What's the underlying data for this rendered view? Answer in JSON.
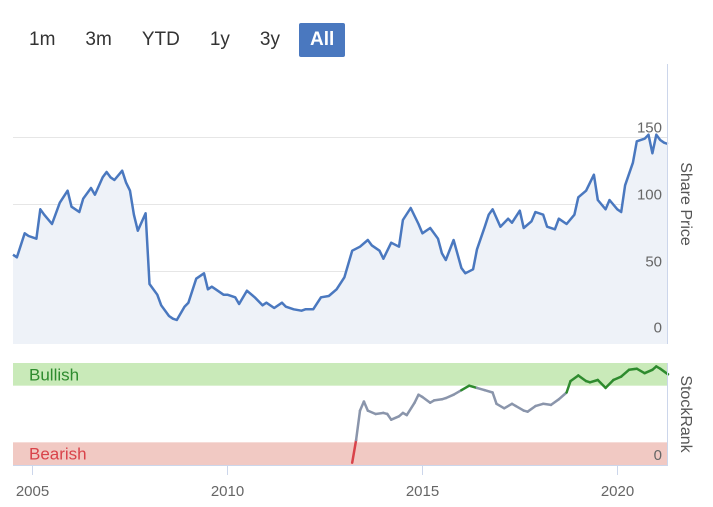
{
  "range_selector": {
    "buttons": [
      "1m",
      "3m",
      "YTD",
      "1y",
      "3y",
      "All"
    ],
    "active_index": 5,
    "active_color": "#4a78bf"
  },
  "chart_data": [
    {
      "type": "line",
      "title": "",
      "ylabel": "Share Price",
      "xlim": [
        2004.5,
        2021.3
      ],
      "ylim": [
        -5,
        205
      ],
      "y_ticks": [
        0,
        50,
        100,
        150
      ],
      "grid": true,
      "line_color": "#4a78bf",
      "fill_color": "#eef2f8",
      "series": [
        {
          "x": [
            2004.5,
            2004.6,
            2004.8,
            2004.9,
            2005.1,
            2005.2,
            2005.3,
            2005.5,
            2005.7,
            2005.9,
            2006.0,
            2006.2,
            2006.3,
            2006.5,
            2006.6,
            2006.8,
            2006.9,
            2007.0,
            2007.1,
            2007.3,
            2007.4,
            2007.5,
            2007.6,
            2007.7,
            2007.9,
            2008.0,
            2008.2,
            2008.3,
            2008.5,
            2008.6,
            2008.7,
            2008.9,
            2009.0,
            2009.2,
            2009.4,
            2009.5,
            2009.6,
            2009.7,
            2009.9,
            2010.0,
            2010.2,
            2010.3,
            2010.5,
            2010.7,
            2010.9,
            2011.0,
            2011.2,
            2011.4,
            2011.5,
            2011.7,
            2011.9,
            2012.0,
            2012.2,
            2012.4,
            2012.6,
            2012.8,
            2013.0,
            2013.2,
            2013.4,
            2013.6,
            2013.7,
            2013.9,
            2014.0,
            2014.2,
            2014.4,
            2014.5,
            2014.7,
            2014.9,
            2015.0,
            2015.2,
            2015.4,
            2015.5,
            2015.6,
            2015.8,
            2016.0,
            2016.1,
            2016.3,
            2016.4,
            2016.6,
            2016.7,
            2016.8,
            2017.0,
            2017.2,
            2017.3,
            2017.5,
            2017.6,
            2017.8,
            2017.9,
            2018.1,
            2018.2,
            2018.4,
            2018.5,
            2018.7,
            2018.9,
            2019.0,
            2019.2,
            2019.4,
            2019.5,
            2019.7,
            2019.8,
            2020.0,
            2020.1,
            2020.2,
            2020.4,
            2020.5,
            2020.7,
            2020.8,
            2020.9,
            2021.0,
            2021.1,
            2021.2,
            2021.3
          ],
          "values": [
            62,
            60,
            78,
            76,
            74,
            96,
            92,
            85,
            101,
            110,
            98,
            94,
            104,
            112,
            107,
            120,
            124,
            120,
            118,
            125,
            116,
            110,
            92,
            80,
            93,
            40,
            32,
            24,
            16,
            14,
            13,
            23,
            26,
            44,
            48,
            36,
            38,
            36,
            32,
            32,
            30,
            25,
            35,
            30,
            24,
            26,
            22,
            26,
            23,
            21,
            20,
            21,
            21,
            30,
            31,
            36,
            45,
            65,
            68,
            73,
            69,
            65,
            59,
            71,
            68,
            88,
            97,
            85,
            78,
            82,
            74,
            63,
            58,
            73,
            52,
            48,
            51,
            66,
            83,
            92,
            96,
            83,
            89,
            86,
            95,
            82,
            87,
            94,
            92,
            83,
            81,
            89,
            85,
            92,
            105,
            110,
            122,
            103,
            96,
            103,
            96,
            94,
            114,
            131,
            147,
            149,
            152,
            138,
            152,
            148,
            146,
            145
          ]
        }
      ]
    },
    {
      "type": "line",
      "ylabel": "StockRank",
      "bands": [
        {
          "label": "Bullish",
          "range": [
            70,
            90
          ],
          "color": "#c9eab9",
          "text_color": "#2e8b2e"
        },
        {
          "label": "Bearish",
          "range": [
            0,
            20
          ],
          "color": "#f1c9c3",
          "text_color": "#d9434a"
        }
      ],
      "y_ticks": [
        0
      ],
      "ylim": [
        0,
        90
      ],
      "xlim": [
        2004.5,
        2021.3
      ],
      "x_ticks": [
        2005,
        2010,
        2015,
        2020
      ],
      "series": [
        {
          "x": [
            2013.2,
            2013.3,
            2013.4,
            2013.5,
            2013.6,
            2013.8,
            2014.0,
            2014.1,
            2014.2,
            2014.4,
            2014.5,
            2014.6,
            2014.8,
            2014.9,
            2015.0,
            2015.2,
            2015.3,
            2015.5,
            2015.6,
            2015.8,
            2016.0,
            2016.2,
            2016.4,
            2016.6,
            2016.8,
            2016.9,
            2017.1,
            2017.3,
            2017.4,
            2017.6,
            2017.7,
            2017.9,
            2018.1,
            2018.3,
            2018.5,
            2018.7,
            2018.8,
            2019.0,
            2019.2,
            2019.3,
            2019.5,
            2019.7,
            2019.9,
            2020.1,
            2020.3,
            2020.5,
            2020.7,
            2020.9,
            2021.0,
            2021.1,
            2021.3
          ],
          "values": [
            2,
            22,
            48,
            56,
            48,
            45,
            46,
            45,
            40,
            43,
            46,
            44,
            55,
            62,
            60,
            55,
            57,
            58,
            59,
            62,
            66,
            70,
            68,
            66,
            64,
            54,
            50,
            54,
            52,
            48,
            47,
            52,
            54,
            53,
            58,
            64,
            74,
            79,
            74,
            73,
            75,
            68,
            75,
            78,
            84,
            85,
            81,
            84,
            87,
            85,
            80
          ],
          "colors": [
            "#d9434a",
            "#8a95ab",
            "#8a95ab",
            "#8a95ab",
            "#8a95ab",
            "#8a95ab",
            "#8a95ab",
            "#8a95ab",
            "#8a95ab",
            "#8a95ab",
            "#8a95ab",
            "#8a95ab",
            "#8a95ab",
            "#8a95ab",
            "#8a95ab",
            "#8a95ab",
            "#8a95ab",
            "#8a95ab",
            "#8a95ab",
            "#8a95ab",
            "#8a95ab",
            "#8a95ab",
            "#8a95ab",
            "#8a95ab",
            "#8a95ab",
            "#8a95ab",
            "#8a95ab",
            "#8a95ab",
            "#8a95ab",
            "#8a95ab",
            "#8a95ab",
            "#8a95ab",
            "#8a95ab",
            "#8a95ab",
            "#8a95ab",
            "#8a95ab",
            "#8a95ab",
            "#8a95ab",
            "#8a95ab",
            "#8a95ab",
            "#8a95ab",
            "#8a95ab",
            "#8a95ab",
            "#8a95ab",
            "#8a95ab",
            "#8a95ab",
            "#8a95ab",
            "#8a95ab",
            "#8a95ab",
            "#8a95ab",
            "#8a95ab"
          ]
        }
      ]
    }
  ]
}
